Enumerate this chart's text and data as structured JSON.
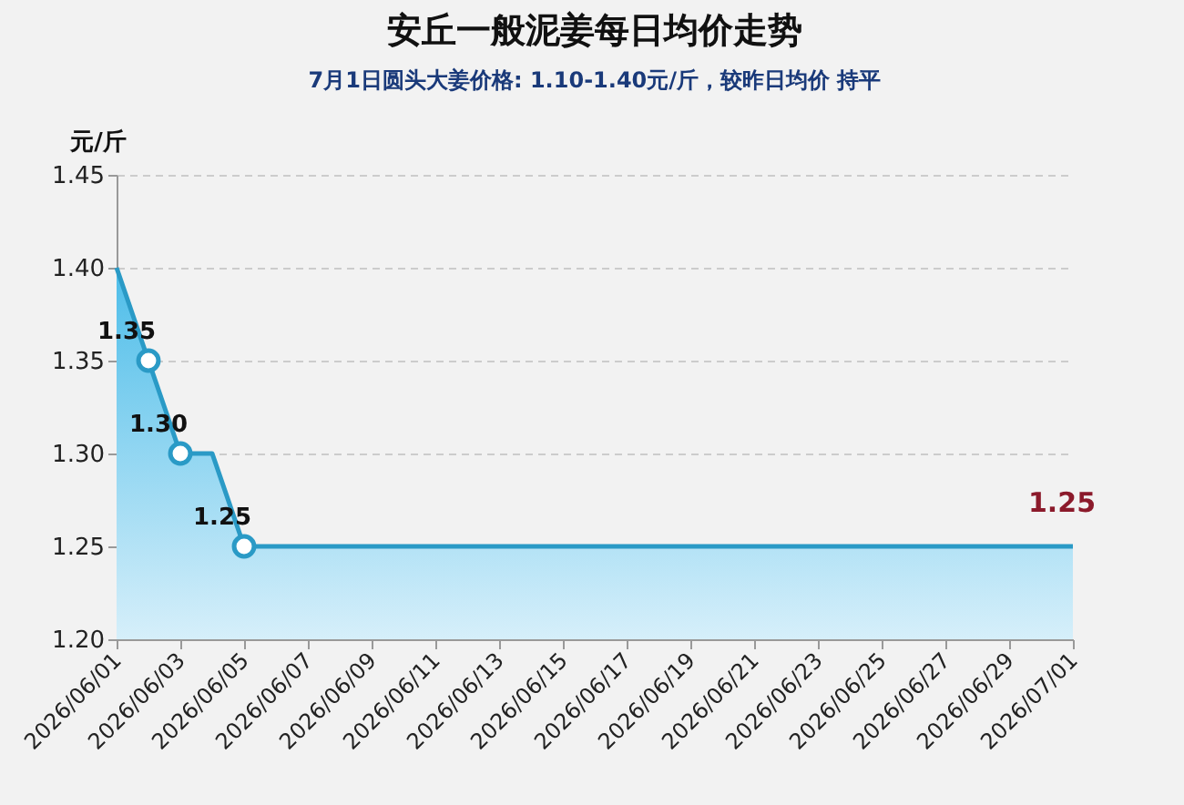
{
  "chart_data": {
    "type": "area",
    "title": "安丘一般泥姜每日均价走势",
    "subtitle": "7月1日圆头大姜价格: 1.10-1.40元/斤，较昨日均价 持平",
    "ylabel": "元/斤",
    "x": [
      "2026-06-01",
      "2026-06-02",
      "2026-06-03",
      "2026-06-04",
      "2026-06-05",
      "2026-06-06",
      "2026-06-07",
      "2026-06-08",
      "2026-06-09",
      "2026-06-10",
      "2026-06-11",
      "2026-06-12",
      "2026-06-13",
      "2026-06-14",
      "2026-06-15",
      "2026-06-16",
      "2026-06-17",
      "2026-06-18",
      "2026-06-19",
      "2026-06-20",
      "2026-06-21",
      "2026-06-22",
      "2026-06-23",
      "2026-06-24",
      "2026-06-25",
      "2026-06-26",
      "2026-06-27",
      "2026-06-28",
      "2026-06-29",
      "2026-06-30",
      "2026-07-01"
    ],
    "series": [
      {
        "color": "#2a9ac6",
        "values": [
          1.4,
          1.35,
          1.3,
          1.3,
          1.25,
          1.25,
          1.25,
          1.25,
          1.25,
          1.25,
          1.25,
          1.25,
          1.25,
          1.25,
          1.25,
          1.25,
          1.25,
          1.25,
          1.25,
          1.25,
          1.25,
          1.25,
          1.25,
          1.25,
          1.25,
          1.25,
          1.25,
          1.25,
          1.25,
          1.25,
          1.25
        ],
        "value_labels": [
          null,
          "1.35",
          "1.30",
          null,
          "1.25",
          null,
          null,
          null,
          null,
          null,
          null,
          null,
          null,
          null,
          null,
          null,
          null,
          null,
          null,
          null,
          null,
          null,
          null,
          null,
          null,
          null,
          null,
          null,
          null,
          null,
          "1.25"
        ]
      }
    ],
    "xlim": [
      "2026-06-01",
      "2026-07-01"
    ],
    "xticks": [
      {
        "value": "2026-06-01",
        "label": "2026/06/01"
      },
      {
        "value": "2026-06-03",
        "label": "2026/06/03"
      },
      {
        "value": "2026-06-05",
        "label": "2026/06/05"
      },
      {
        "value": "2026-06-07",
        "label": "2026/06/07"
      },
      {
        "value": "2026-06-09",
        "label": "2026/06/09"
      },
      {
        "value": "2026-06-11",
        "label": "2026/06/11"
      },
      {
        "value": "2026-06-13",
        "label": "2026/06/13"
      },
      {
        "value": "2026-06-15",
        "label": "2026/06/15"
      },
      {
        "value": "2026-06-17",
        "label": "2026/06/17"
      },
      {
        "value": "2026-06-19",
        "label": "2026/06/19"
      },
      {
        "value": "2026-06-21",
        "label": "2026/06/21"
      },
      {
        "value": "2026-06-23",
        "label": "2026/06/23"
      },
      {
        "value": "2026-06-25",
        "label": "2026/06/25"
      },
      {
        "value": "2026-06-27",
        "label": "2026/06/27"
      },
      {
        "value": "2026-06-29",
        "label": "2026/06/29"
      },
      {
        "value": "2026-07-01",
        "label": "2026/07/01"
      }
    ],
    "ylim": [
      1.2,
      1.45
    ],
    "yticks": [
      {
        "value": 1.2,
        "label": "1.20"
      },
      {
        "value": 1.25,
        "label": "1.25"
      },
      {
        "value": 1.3,
        "label": "1.30"
      },
      {
        "value": 1.35,
        "label": "1.35"
      },
      {
        "value": 1.4,
        "label": "1.40"
      },
      {
        "value": 1.45,
        "label": "1.45"
      }
    ],
    "grid": "y"
  }
}
